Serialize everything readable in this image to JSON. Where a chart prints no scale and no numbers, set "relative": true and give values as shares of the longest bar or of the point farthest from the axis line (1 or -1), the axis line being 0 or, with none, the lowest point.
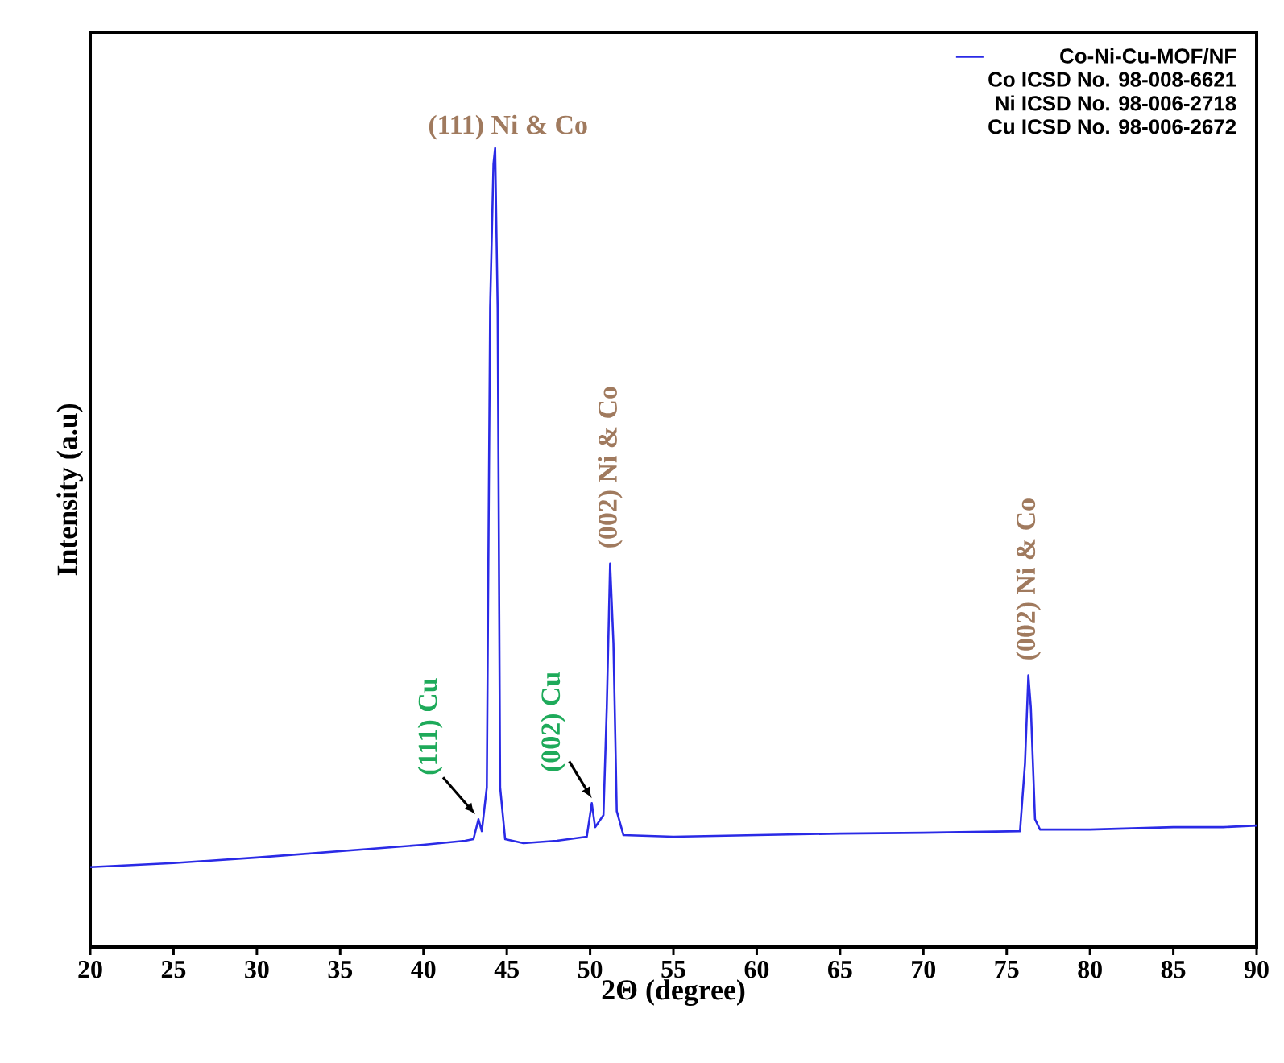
{
  "chart_data": {
    "type": "line",
    "xlabel": "2Θ (degree)",
    "ylabel": "Intensity (a.u)",
    "relative": true,
    "tick_labels": "x",
    "legend": "top right",
    "xlim": [
      20,
      90
    ],
    "xticks": [
      20,
      25,
      30,
      35,
      40,
      45,
      50,
      55,
      60,
      65,
      70,
      75,
      80,
      85,
      90
    ],
    "x": [
      20,
      25,
      30,
      35,
      40,
      42.5,
      43.0,
      43.3,
      43.5,
      43.8,
      44.0,
      44.2,
      44.3,
      44.45,
      44.6,
      44.9,
      46,
      48,
      49.8,
      50.1,
      50.3,
      50.8,
      51.0,
      51.2,
      51.4,
      51.6,
      52,
      55,
      60,
      65,
      70,
      75.8,
      76.1,
      76.3,
      76.45,
      76.7,
      77,
      80,
      85,
      88,
      90
    ],
    "series": [
      {
        "name": "Co-Ni-Cu-MOF/NF",
        "color": "#2a2ae6",
        "values": [
          0.1,
          0.105,
          0.112,
          0.12,
          0.128,
          0.133,
          0.135,
          0.16,
          0.145,
          0.2,
          0.8,
          0.98,
          1.0,
          0.8,
          0.2,
          0.135,
          0.13,
          0.133,
          0.138,
          0.18,
          0.15,
          0.165,
          0.3,
          0.48,
          0.38,
          0.17,
          0.14,
          0.138,
          0.14,
          0.142,
          0.143,
          0.145,
          0.23,
          0.34,
          0.3,
          0.16,
          0.147,
          0.147,
          0.15,
          0.15,
          0.152
        ]
      }
    ],
    "annotations": [
      {
        "text": "(111) Ni & Co",
        "x": 44.3,
        "y": 1.0
      },
      {
        "text": "(002) Ni & Co",
        "x": 51.2,
        "y": 0.48
      },
      {
        "text": "(002) Ni & Co",
        "x": 76.3,
        "y": 0.34
      },
      {
        "text": "(111) Cu",
        "x": 43.3,
        "y": 0.16
      },
      {
        "text": "(002) Cu",
        "x": 50.1,
        "y": 0.18
      },
      "Co ICSD No. 98-008-6621",
      "Ni ICSD No. 98-006-2718",
      "Cu ICSD No. 98-006-2672"
    ]
  }
}
